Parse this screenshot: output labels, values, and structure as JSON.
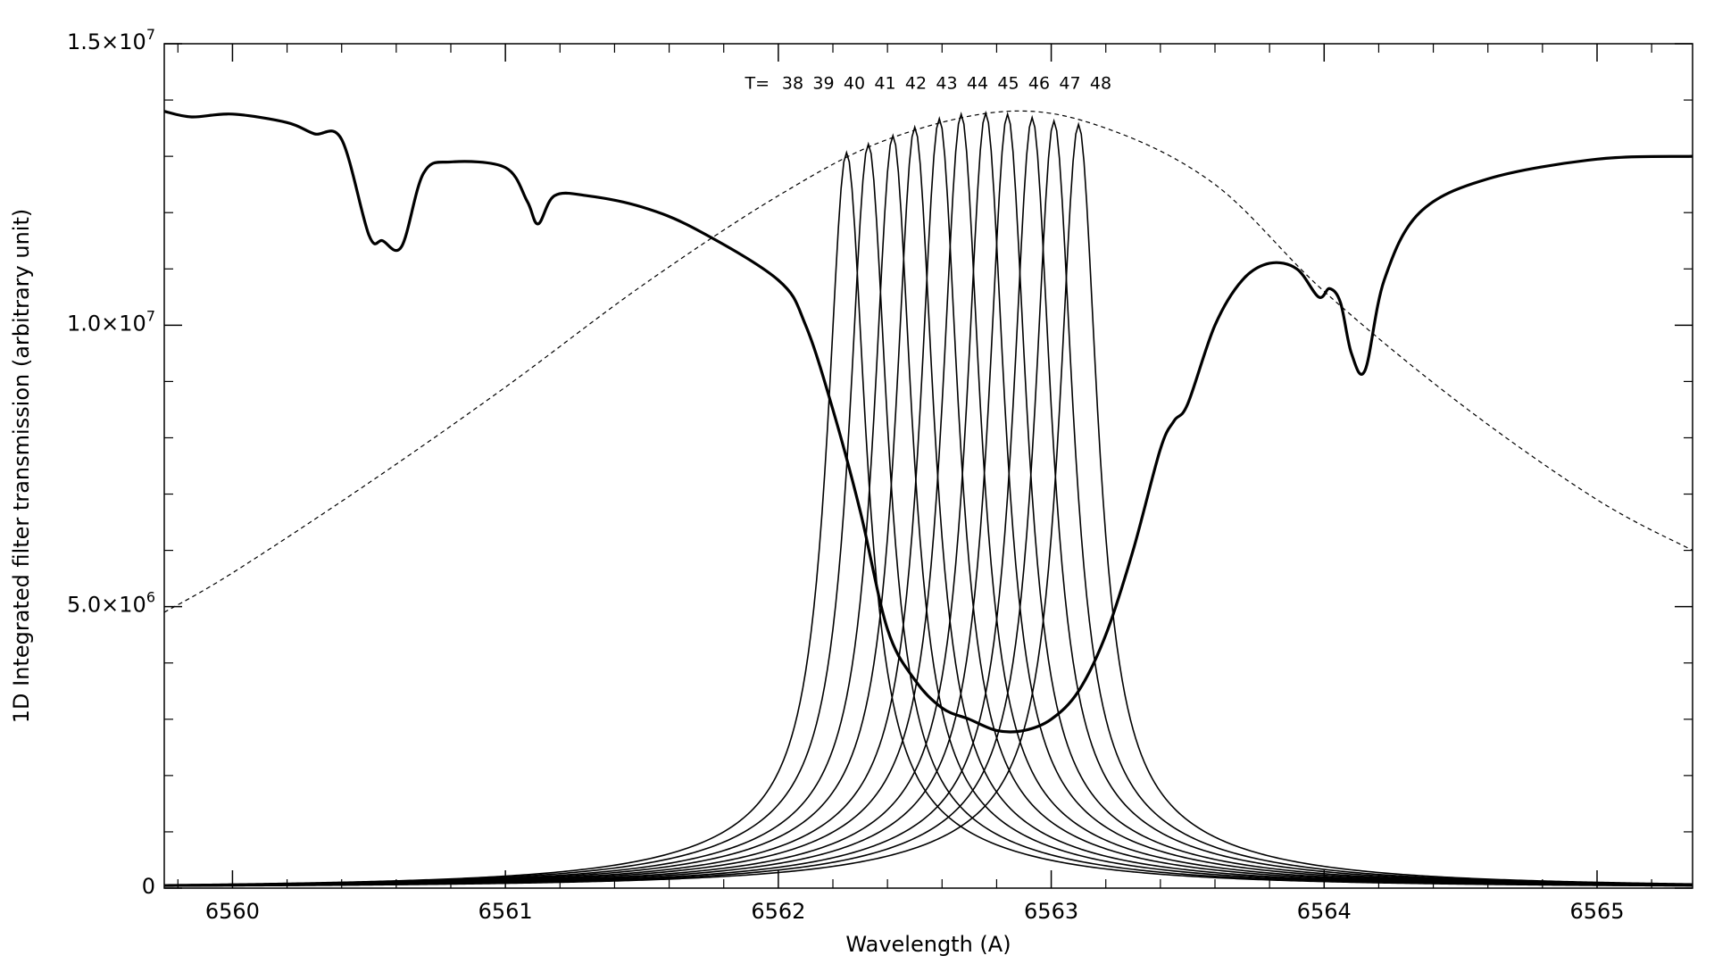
{
  "chart_data": {
    "type": "line",
    "title": "",
    "xlabel": "Wavelength (A)",
    "ylabel": "1D Integrated filter transmission (arbitrary unit)",
    "xlim": [
      6559.75,
      6565.35
    ],
    "ylim": [
      0,
      15000000
    ],
    "grid": false,
    "legend": "none",
    "x_ticks": [
      {
        "value": 6560,
        "label": "6560"
      },
      {
        "value": 6561,
        "label": "6561"
      },
      {
        "value": 6562,
        "label": "6562"
      },
      {
        "value": 6563,
        "label": "6563"
      },
      {
        "value": 6564,
        "label": "6564"
      },
      {
        "value": 6565,
        "label": "6565"
      }
    ],
    "y_ticks": [
      {
        "value": 0,
        "mant": "0",
        "exp": ""
      },
      {
        "value": 5000000,
        "mant": "5.0×10",
        "exp": "6"
      },
      {
        "value": 10000000,
        "mant": "1.0×10",
        "exp": "7"
      },
      {
        "value": 15000000,
        "mant": "1.5×10",
        "exp": "7"
      }
    ],
    "annotation": {
      "prefix": "T=",
      "labels": [
        "38",
        "39",
        "40",
        "41",
        "42",
        "43",
        "44",
        "45",
        "46",
        "47",
        "48"
      ],
      "y": 14200000
    },
    "filter_profiles": {
      "centers": [
        6562.25,
        6562.33,
        6562.42,
        6562.5,
        6562.59,
        6562.67,
        6562.76,
        6562.84,
        6562.93,
        6563.01,
        6563.1
      ],
      "peaks": [
        13000000,
        13150000,
        13300000,
        13450000,
        13600000,
        13680000,
        13700000,
        13680000,
        13620000,
        13560000,
        13500000
      ]
    },
    "envelope": {
      "style": "dashed",
      "x": [
        6559.75,
        6560.0,
        6560.5,
        6561.0,
        6561.5,
        6562.0,
        6562.4,
        6562.84,
        6563.2,
        6563.6,
        6564.0,
        6564.5,
        6565.0,
        6565.35
      ],
      "y": [
        4900000,
        5600000,
        7200000,
        8900000,
        10700000,
        12300000,
        13300000,
        13800000,
        13500000,
        12500000,
        10600000,
        8600000,
        6900000,
        6000000
      ]
    },
    "spectrum": {
      "style": "thick",
      "x": [
        6559.75,
        6559.85,
        6560.0,
        6560.2,
        6560.3,
        6560.4,
        6560.5,
        6560.55,
        6560.62,
        6560.7,
        6560.8,
        6561.0,
        6561.08,
        6561.12,
        6561.18,
        6561.3,
        6561.5,
        6561.7,
        6562.0,
        6562.1,
        6562.2,
        6562.3,
        6562.4,
        6562.5,
        6562.6,
        6562.7,
        6562.8,
        6562.9,
        6563.0,
        6563.1,
        6563.2,
        6563.3,
        6563.4,
        6563.45,
        6563.5,
        6563.6,
        6563.7,
        6563.8,
        6563.9,
        6563.98,
        6564.02,
        6564.06,
        6564.1,
        6564.15,
        6564.22,
        6564.35,
        6564.6,
        6565.0,
        6565.35
      ],
      "y": [
        13800000,
        13700000,
        13750000,
        13600000,
        13400000,
        13300000,
        11600000,
        11500000,
        11400000,
        12700000,
        12900000,
        12800000,
        12200000,
        11800000,
        12300000,
        12300000,
        12100000,
        11700000,
        10800000,
        10000000,
        8500000,
        6700000,
        4600000,
        3700000,
        3200000,
        3000000,
        2800000,
        2800000,
        3000000,
        3500000,
        4500000,
        6000000,
        7800000,
        8300000,
        8600000,
        10000000,
        10800000,
        11100000,
        11000000,
        10500000,
        10650000,
        10400000,
        9500000,
        9200000,
        10800000,
        12000000,
        12600000,
        12950000,
        13000000
      ]
    }
  }
}
